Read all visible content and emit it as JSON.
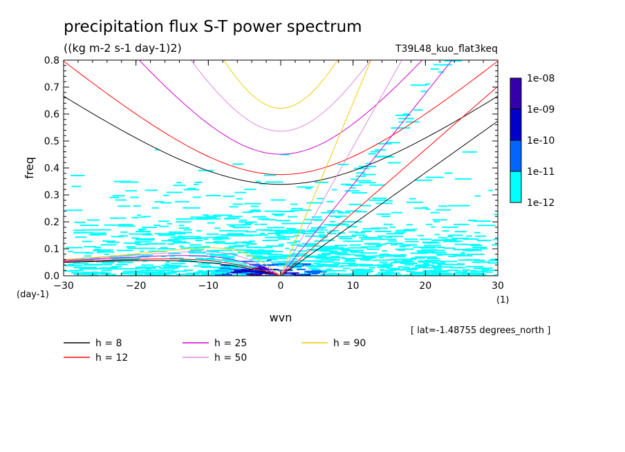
{
  "chart_data": {
    "type": "heatmap",
    "title": "precipitation flux S-T power spectrum",
    "units": "((kg m-2 s-1 day-1)2)",
    "experiment": "T39L48_kuo_flat3keq",
    "xlabel": "wvn",
    "ylabel": "freq",
    "x_unit": "(1)",
    "y_unit": "(day-1)",
    "xlim": [
      -30,
      30
    ],
    "ylim": [
      0,
      0.8
    ],
    "x_ticks": [
      -30,
      -20,
      -10,
      0,
      10,
      20,
      30
    ],
    "y_ticks": [
      0.0,
      0.1,
      0.2,
      0.3,
      0.4,
      0.5,
      0.6,
      0.7,
      0.8
    ],
    "note": "[ lat=-1.48755 degrees_north ]",
    "colorbar": {
      "levels": [
        "1e-08",
        "1e-09",
        "1e-10",
        "1e-11",
        "1e-12"
      ],
      "colors": [
        "#00ffff",
        "#0066ff",
        "#0000cc",
        "#3300aa"
      ]
    },
    "series": [
      {
        "name": "h =  8",
        "equivalent_depth_m": 8,
        "color": "#000000"
      },
      {
        "name": "h = 12",
        "equivalent_depth_m": 12,
        "color": "#ff0000"
      },
      {
        "name": "h = 25",
        "equivalent_depth_m": 25,
        "color": "#cc00cc"
      },
      {
        "name": "h = 50",
        "equivalent_depth_m": 50,
        "color": "#dd88dd"
      },
      {
        "name": "h = 90",
        "equivalent_depth_m": 90,
        "color": "#eecc00"
      }
    ]
  }
}
